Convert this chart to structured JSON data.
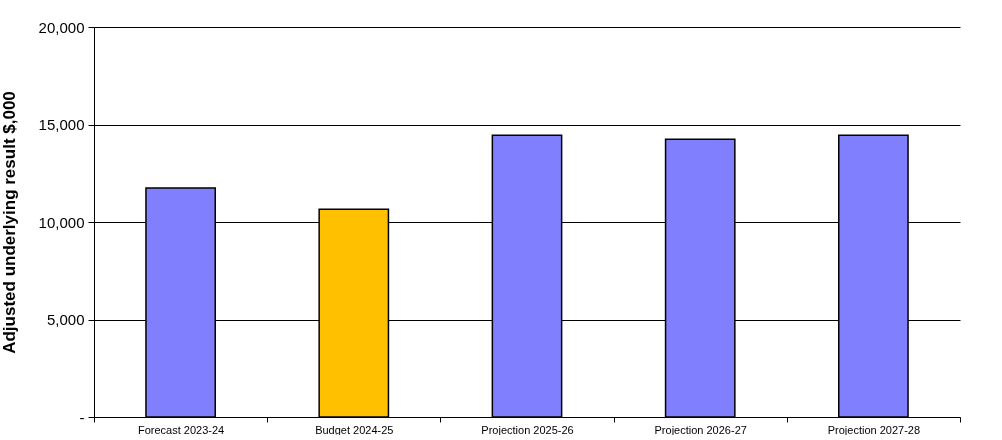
{
  "chart_data": {
    "type": "bar",
    "ylabel": "Adjusted underlying result $,000",
    "categories": [
      "Forecast 2023-24",
      "Budget 2024-25",
      "Projection 2025-26",
      "Projection 2026-27",
      "Projection 2027-28"
    ],
    "values": [
      11750,
      10650,
      14450,
      14250,
      14450
    ],
    "colors": [
      "#8080ff",
      "#ffc000",
      "#8080ff",
      "#8080ff",
      "#8080ff"
    ],
    "ylim": [
      0,
      20000
    ],
    "yticks": [
      {
        "value": 0,
        "label": "-"
      },
      {
        "value": 5000,
        "label": "5,000"
      },
      {
        "value": 10000,
        "label": "10,000"
      },
      {
        "value": 15000,
        "label": "15,000"
      },
      {
        "value": 20000,
        "label": "20,000"
      }
    ],
    "grid": "y"
  }
}
